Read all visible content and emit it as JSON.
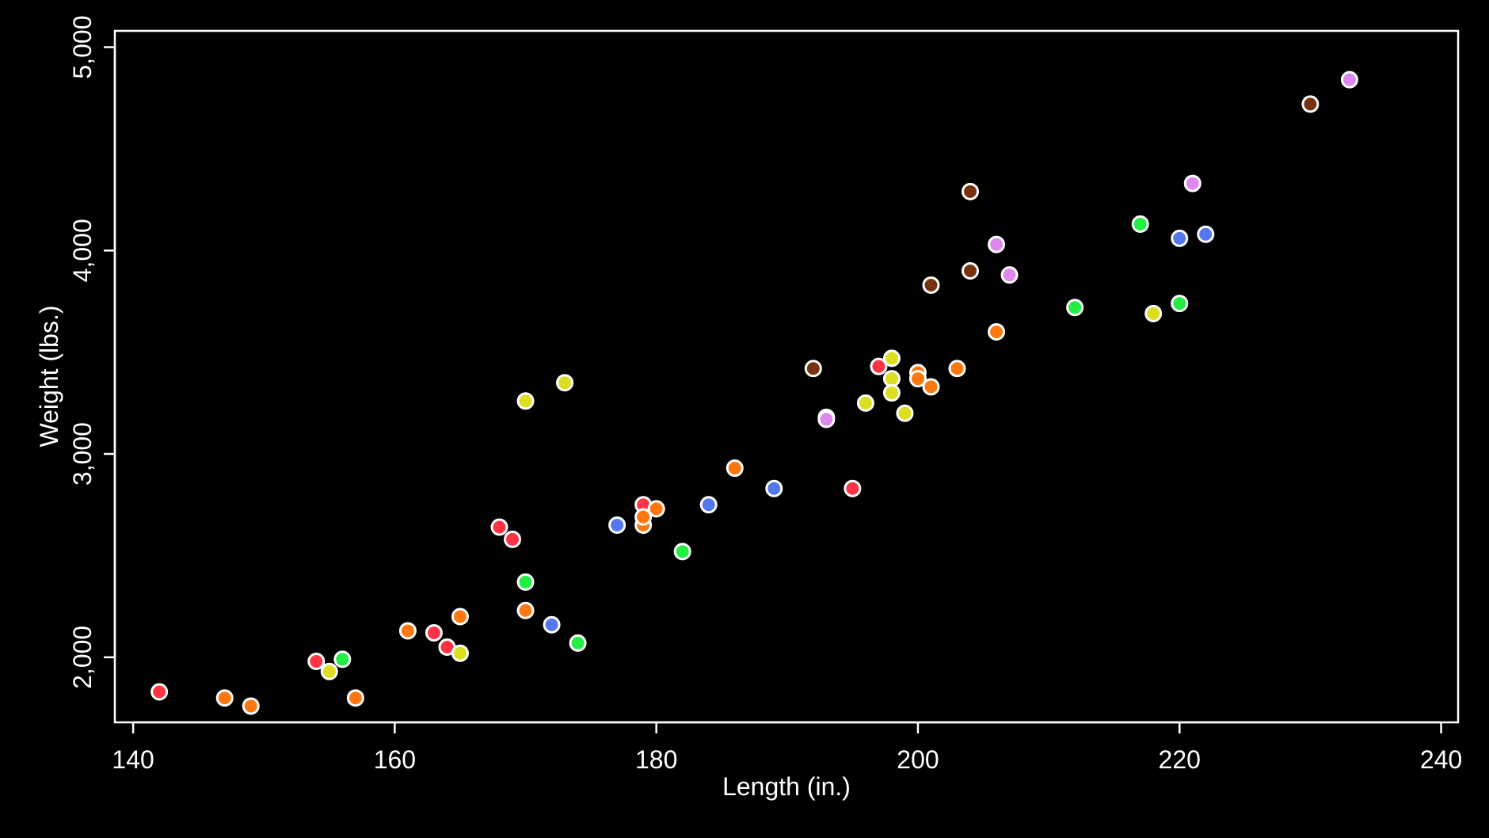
{
  "chart_data": {
    "type": "scatter",
    "xlabel": "Length (in.)",
    "ylabel": "Weight (lbs.)",
    "xlim": [
      138.6,
      241.3
    ],
    "ylim": [
      1680,
      5080
    ],
    "x_ticks": [
      140,
      160,
      180,
      200,
      220,
      240
    ],
    "x_tick_labels": [
      "140",
      "160",
      "180",
      "200",
      "220",
      "240"
    ],
    "y_ticks": [
      2000,
      3000,
      4000,
      5000
    ],
    "y_tick_labels": [
      "2,000",
      "3,000",
      "4,000",
      "5,000"
    ],
    "grid": false,
    "background": "#000000",
    "foreground": "#ffffff",
    "palette": {
      "red": "#ff3344",
      "orange": "#ff7711",
      "yellow": "#dddd22",
      "green": "#22ee44",
      "blue": "#5577ee",
      "violet": "#dd88ee",
      "brown": "#773311"
    },
    "points": [
      {
        "x": 142,
        "y": 1830,
        "color": "red"
      },
      {
        "x": 147,
        "y": 1800,
        "color": "orange"
      },
      {
        "x": 149,
        "y": 1760,
        "color": "orange"
      },
      {
        "x": 154,
        "y": 1980,
        "color": "red"
      },
      {
        "x": 155,
        "y": 1930,
        "color": "yellow"
      },
      {
        "x": 156,
        "y": 1990,
        "color": "green"
      },
      {
        "x": 157,
        "y": 1800,
        "color": "orange"
      },
      {
        "x": 161,
        "y": 2130,
        "color": "orange"
      },
      {
        "x": 163,
        "y": 2120,
        "color": "red"
      },
      {
        "x": 164,
        "y": 2050,
        "color": "red"
      },
      {
        "x": 165,
        "y": 2200,
        "color": "orange"
      },
      {
        "x": 165,
        "y": 2020,
        "color": "yellow"
      },
      {
        "x": 168,
        "y": 2640,
        "color": "red"
      },
      {
        "x": 169,
        "y": 2580,
        "color": "red"
      },
      {
        "x": 170,
        "y": 3260,
        "color": "yellow"
      },
      {
        "x": 170,
        "y": 2370,
        "color": "green"
      },
      {
        "x": 170,
        "y": 2230,
        "color": "orange"
      },
      {
        "x": 172,
        "y": 2160,
        "color": "blue"
      },
      {
        "x": 173,
        "y": 3350,
        "color": "yellow"
      },
      {
        "x": 174,
        "y": 2070,
        "color": "green"
      },
      {
        "x": 177,
        "y": 2650,
        "color": "blue"
      },
      {
        "x": 179,
        "y": 2750,
        "color": "red"
      },
      {
        "x": 179,
        "y": 2650,
        "color": "orange"
      },
      {
        "x": 179,
        "y": 2690,
        "color": "orange"
      },
      {
        "x": 180,
        "y": 2730,
        "color": "orange"
      },
      {
        "x": 182,
        "y": 2520,
        "color": "green"
      },
      {
        "x": 184,
        "y": 2750,
        "color": "blue"
      },
      {
        "x": 186,
        "y": 2930,
        "color": "orange"
      },
      {
        "x": 189,
        "y": 2830,
        "color": "blue"
      },
      {
        "x": 192,
        "y": 3420,
        "color": "brown"
      },
      {
        "x": 193,
        "y": 3180,
        "color": "violet"
      },
      {
        "x": 193,
        "y": 3170,
        "color": "violet"
      },
      {
        "x": 195,
        "y": 2830,
        "color": "red"
      },
      {
        "x": 196,
        "y": 3250,
        "color": "yellow"
      },
      {
        "x": 197,
        "y": 3430,
        "color": "red"
      },
      {
        "x": 198,
        "y": 3470,
        "color": "yellow"
      },
      {
        "x": 198,
        "y": 3370,
        "color": "yellow"
      },
      {
        "x": 198,
        "y": 3300,
        "color": "yellow"
      },
      {
        "x": 199,
        "y": 3200,
        "color": "yellow"
      },
      {
        "x": 200,
        "y": 3400,
        "color": "orange"
      },
      {
        "x": 200,
        "y": 3370,
        "color": "orange"
      },
      {
        "x": 201,
        "y": 3330,
        "color": "orange"
      },
      {
        "x": 201,
        "y": 3830,
        "color": "brown"
      },
      {
        "x": 203,
        "y": 3420,
        "color": "orange"
      },
      {
        "x": 204,
        "y": 4290,
        "color": "brown"
      },
      {
        "x": 204,
        "y": 3900,
        "color": "brown"
      },
      {
        "x": 206,
        "y": 4030,
        "color": "violet"
      },
      {
        "x": 206,
        "y": 3600,
        "color": "orange"
      },
      {
        "x": 207,
        "y": 3880,
        "color": "violet"
      },
      {
        "x": 212,
        "y": 3720,
        "color": "green"
      },
      {
        "x": 217,
        "y": 4130,
        "color": "green"
      },
      {
        "x": 218,
        "y": 3690,
        "color": "yellow"
      },
      {
        "x": 220,
        "y": 4060,
        "color": "blue"
      },
      {
        "x": 220,
        "y": 3740,
        "color": "green"
      },
      {
        "x": 221,
        "y": 4330,
        "color": "violet"
      },
      {
        "x": 222,
        "y": 4080,
        "color": "blue"
      },
      {
        "x": 230,
        "y": 4720,
        "color": "brown"
      },
      {
        "x": 233,
        "y": 4840,
        "color": "violet"
      }
    ]
  }
}
